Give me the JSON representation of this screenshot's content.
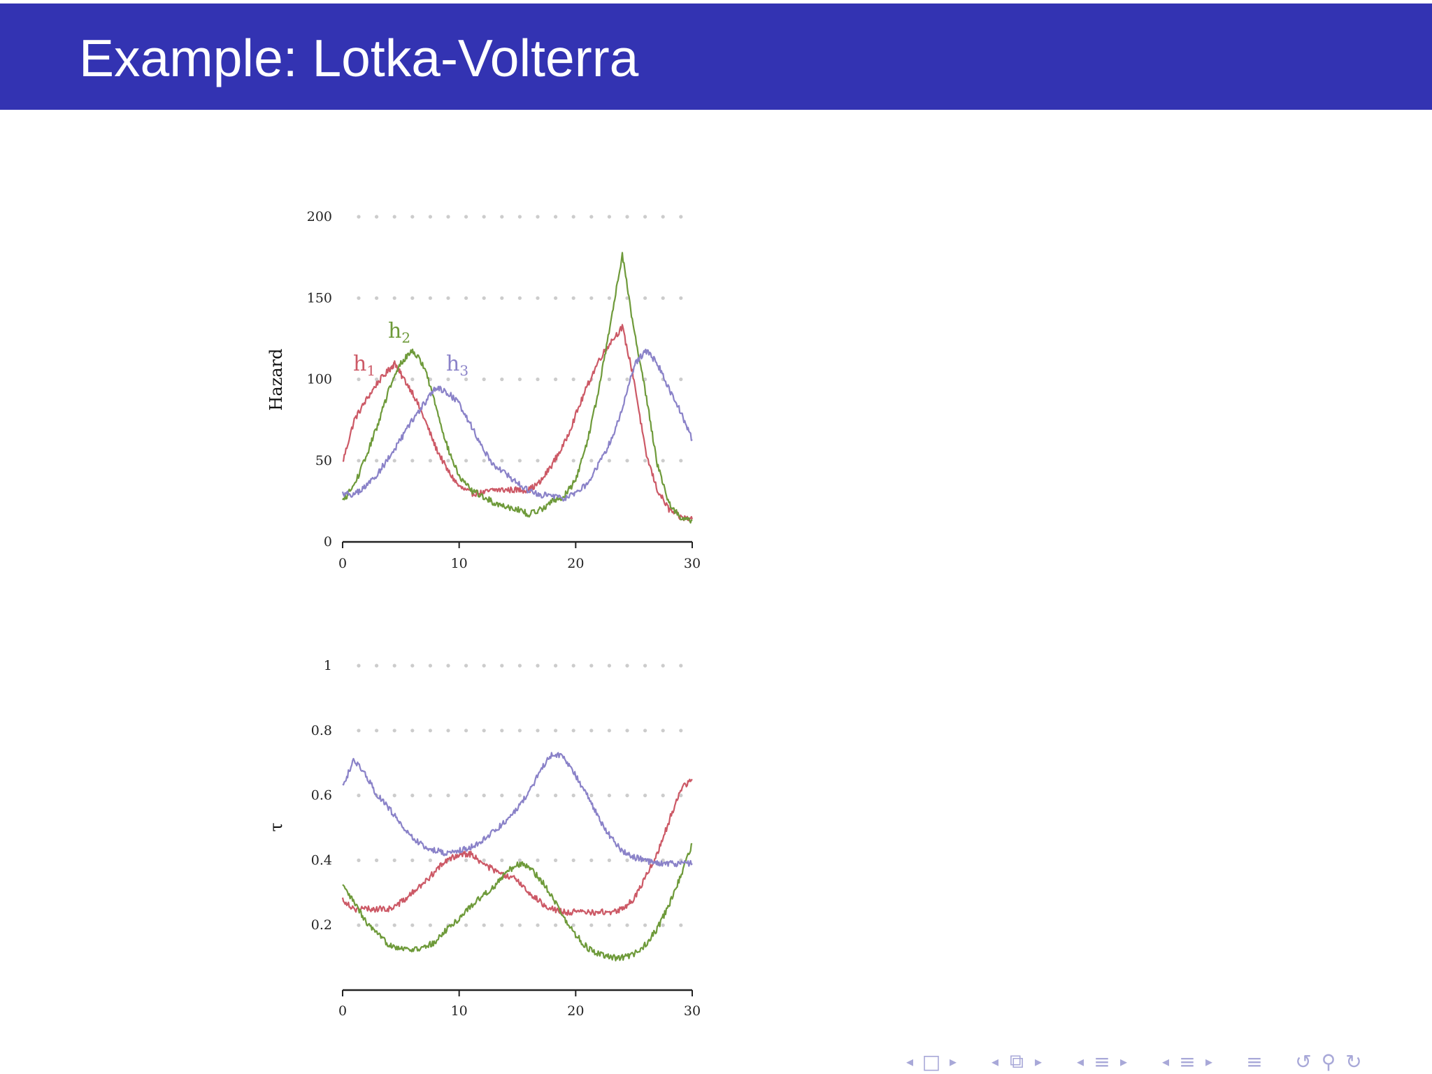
{
  "slide": {
    "title": "Example: Lotka-Volterra"
  },
  "colors": {
    "title_bar": "#3333b2",
    "h1": "#cc5966",
    "h2": "#6e9a3a",
    "h3": "#8a82c8",
    "grid": "#cccccc",
    "nav": "#a8a8d8"
  },
  "navigation": {
    "icons": [
      "frame-nav-icon",
      "subsection-nav-icon",
      "section-nav-icon",
      "document-nav-icon",
      "back-icon",
      "search-icon",
      "forward-icon"
    ]
  },
  "chart_data": [
    {
      "type": "line",
      "title": "",
      "xlabel": "",
      "ylabel": "Hazard",
      "xlim": [
        0,
        30
      ],
      "ylim": [
        0,
        200
      ],
      "xticks": [
        "0",
        "10",
        "20",
        "30"
      ],
      "yticks": [
        "0",
        "50",
        "100",
        "150",
        "200"
      ],
      "grid": "dotted horizontal",
      "legend": "inline labels",
      "series": [
        {
          "name": "h",
          "subscript": "1",
          "x": [
            0,
            1,
            2,
            3,
            4,
            4.5,
            5,
            6,
            7,
            8,
            9,
            10,
            11,
            12,
            13,
            14,
            15,
            16,
            17,
            18,
            19,
            20,
            21,
            22,
            23,
            24,
            25,
            26,
            27,
            28,
            29,
            30
          ],
          "values": [
            49,
            75,
            87,
            98,
            106,
            110,
            103,
            92,
            76,
            58,
            44,
            34,
            30,
            30,
            32,
            32,
            32,
            32,
            37,
            48,
            60,
            78,
            96,
            112,
            123,
            132,
            100,
            55,
            32,
            20,
            15,
            14
          ]
        },
        {
          "name": "h",
          "subscript": "2",
          "x": [
            0,
            1,
            2,
            3,
            4,
            5,
            6,
            7,
            8,
            9,
            10,
            11,
            12,
            13,
            14,
            15,
            16,
            17,
            18,
            19,
            20,
            21,
            22,
            23,
            24,
            25,
            26,
            27,
            28,
            29,
            30
          ],
          "values": [
            25,
            35,
            52,
            72,
            94,
            110,
            118,
            108,
            84,
            58,
            40,
            32,
            28,
            24,
            22,
            20,
            17,
            20,
            25,
            28,
            38,
            62,
            94,
            135,
            177,
            130,
            92,
            48,
            24,
            15,
            13
          ]
        },
        {
          "name": "h",
          "subscript": "3",
          "x": [
            0,
            1,
            2,
            3,
            4,
            5,
            6,
            7,
            8,
            9,
            10,
            11,
            12,
            13,
            14,
            15,
            16,
            17,
            18,
            19,
            20,
            21,
            22,
            23,
            24,
            25,
            26,
            27,
            28,
            29,
            30
          ],
          "values": [
            30,
            29,
            34,
            42,
            52,
            63,
            75,
            85,
            95,
            92,
            85,
            72,
            58,
            47,
            42,
            36,
            31,
            29,
            28,
            27,
            30,
            36,
            48,
            62,
            82,
            108,
            118,
            110,
            94,
            80,
            63
          ]
        }
      ]
    },
    {
      "type": "line",
      "title": "",
      "xlabel": "",
      "ylabel": "τ",
      "xlim": [
        0,
        30
      ],
      "ylim": [
        0,
        1
      ],
      "xticks": [
        "0",
        "10",
        "20",
        "30"
      ],
      "yticks": [
        "0.2",
        "0.4",
        "0.6",
        "0.8",
        "1"
      ],
      "grid": "dotted horizontal",
      "legend": "none",
      "series": [
        {
          "x": [
            0,
            1,
            2,
            3,
            4,
            5,
            6,
            7,
            8,
            9,
            10,
            11,
            12,
            13,
            14,
            15,
            16,
            17,
            18,
            19,
            20,
            21,
            22,
            23,
            24,
            25,
            26,
            27,
            28,
            29,
            30
          ],
          "values": [
            0.28,
            0.25,
            0.25,
            0.25,
            0.25,
            0.27,
            0.3,
            0.33,
            0.37,
            0.4,
            0.42,
            0.42,
            0.39,
            0.37,
            0.35,
            0.34,
            0.3,
            0.27,
            0.25,
            0.24,
            0.24,
            0.24,
            0.24,
            0.24,
            0.25,
            0.28,
            0.35,
            0.42,
            0.52,
            0.62,
            0.65
          ]
        },
        {
          "x": [
            0,
            1,
            2,
            3,
            4,
            5,
            6,
            7,
            8,
            9,
            10,
            11,
            12,
            13,
            14,
            15,
            16,
            17,
            18,
            19,
            20,
            21,
            22,
            23,
            24,
            25,
            26,
            27,
            28,
            29,
            30
          ],
          "values": [
            0.32,
            0.27,
            0.21,
            0.17,
            0.14,
            0.13,
            0.125,
            0.13,
            0.15,
            0.19,
            0.22,
            0.26,
            0.29,
            0.32,
            0.36,
            0.39,
            0.38,
            0.34,
            0.29,
            0.22,
            0.17,
            0.13,
            0.11,
            0.1,
            0.1,
            0.11,
            0.14,
            0.19,
            0.26,
            0.35,
            0.45
          ]
        },
        {
          "x": [
            0,
            1,
            2,
            3,
            4,
            5,
            6,
            7,
            8,
            9,
            10,
            11,
            12,
            13,
            14,
            15,
            16,
            17,
            18,
            19,
            20,
            21,
            22,
            23,
            24,
            25,
            26,
            27,
            28,
            29,
            30
          ],
          "values": [
            0.63,
            0.71,
            0.66,
            0.6,
            0.56,
            0.51,
            0.47,
            0.44,
            0.43,
            0.42,
            0.43,
            0.44,
            0.46,
            0.49,
            0.52,
            0.56,
            0.61,
            0.68,
            0.73,
            0.72,
            0.66,
            0.6,
            0.53,
            0.47,
            0.43,
            0.41,
            0.4,
            0.39,
            0.39,
            0.39,
            0.39
          ]
        }
      ]
    }
  ]
}
